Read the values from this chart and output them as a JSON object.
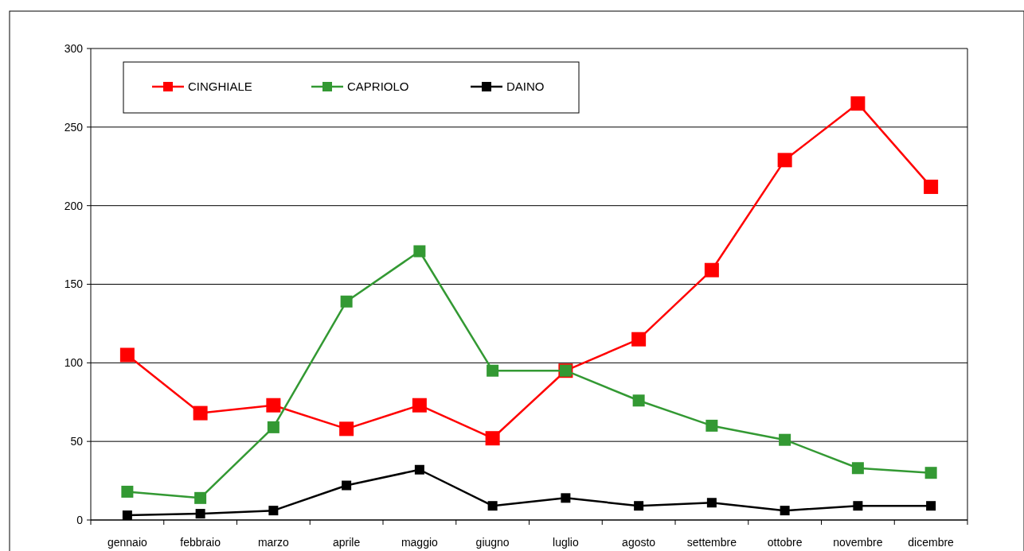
{
  "chart_data": {
    "type": "line",
    "categories": [
      "gennaio",
      "febbraio",
      "marzo",
      "aprile",
      "maggio",
      "giugno",
      "luglio",
      "agosto",
      "settembre",
      "ottobre",
      "novembre",
      "dicembre"
    ],
    "series": [
      {
        "name": "CINGHIALE",
        "color": "#ff0000",
        "values": [
          105,
          68,
          73,
          58,
          73,
          52,
          95,
          115,
          159,
          229,
          265,
          212
        ]
      },
      {
        "name": "CAPRIOLO",
        "color": "#339933",
        "values": [
          18,
          14,
          59,
          139,
          171,
          95,
          95,
          76,
          60,
          51,
          33,
          30
        ]
      },
      {
        "name": "DAINO",
        "color": "#000000",
        "values": [
          3,
          4,
          6,
          22,
          32,
          9,
          14,
          9,
          11,
          6,
          9,
          9
        ]
      }
    ],
    "ylim": [
      0,
      300
    ],
    "yticks": [
      0,
      50,
      100,
      150,
      200,
      250,
      300
    ],
    "grid": "y",
    "legend": "top left",
    "marker": "square",
    "line_style": "solid"
  }
}
